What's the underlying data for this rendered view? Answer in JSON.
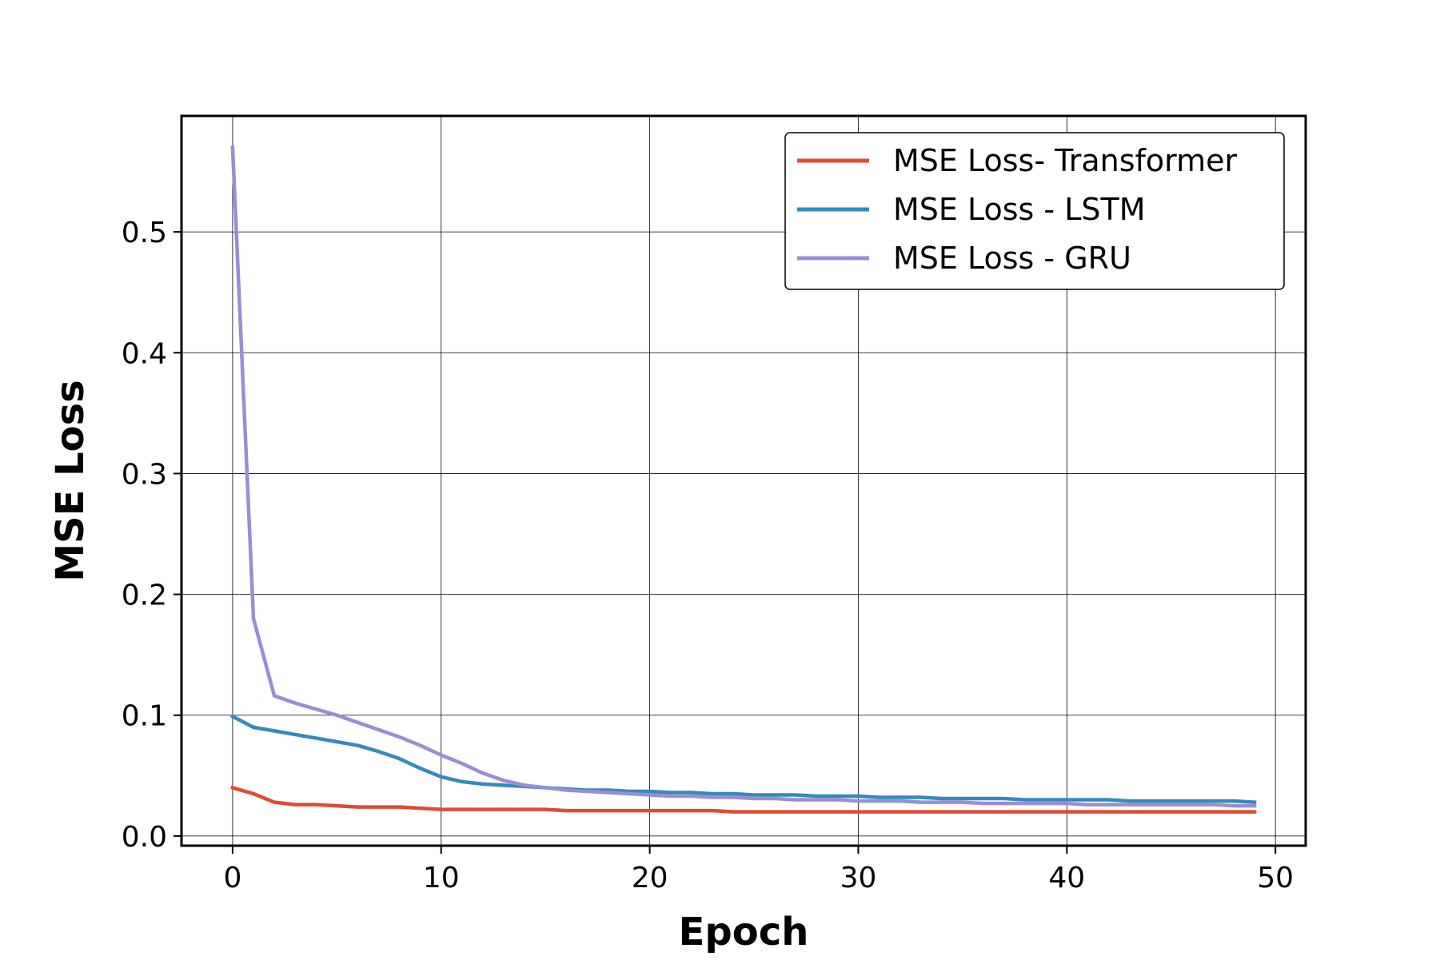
{
  "chart_data": {
    "type": "line",
    "title": "",
    "xlabel": "Epoch",
    "ylabel": "MSE Loss",
    "xlim": [
      -2.45,
      51.45
    ],
    "ylim": [
      -0.008,
      0.596
    ],
    "xticks": [
      0,
      10,
      20,
      30,
      40,
      50
    ],
    "yticks": [
      0.0,
      0.1,
      0.2,
      0.3,
      0.4,
      0.5
    ],
    "grid": true,
    "legend_position": "top-right",
    "x": [
      0,
      1,
      2,
      3,
      4,
      5,
      6,
      7,
      8,
      9,
      10,
      11,
      12,
      13,
      14,
      15,
      16,
      17,
      18,
      19,
      20,
      21,
      22,
      23,
      24,
      25,
      26,
      27,
      28,
      29,
      30,
      31,
      32,
      33,
      34,
      35,
      36,
      37,
      38,
      39,
      40,
      41,
      42,
      43,
      44,
      45,
      46,
      47,
      48,
      49
    ],
    "series": [
      {
        "name": "MSE Loss- Transformer",
        "color": "#e24a33",
        "values": [
          0.04,
          0.035,
          0.028,
          0.026,
          0.026,
          0.025,
          0.024,
          0.024,
          0.024,
          0.023,
          0.022,
          0.022,
          0.022,
          0.022,
          0.022,
          0.022,
          0.021,
          0.021,
          0.021,
          0.021,
          0.021,
          0.021,
          0.021,
          0.021,
          0.02,
          0.02,
          0.02,
          0.02,
          0.02,
          0.02,
          0.02,
          0.02,
          0.02,
          0.02,
          0.02,
          0.02,
          0.02,
          0.02,
          0.02,
          0.02,
          0.02,
          0.02,
          0.02,
          0.02,
          0.02,
          0.02,
          0.02,
          0.02,
          0.02,
          0.02
        ]
      },
      {
        "name": "MSE Loss - LSTM",
        "color": "#348abd",
        "values": [
          0.099,
          0.09,
          0.087,
          0.084,
          0.081,
          0.078,
          0.075,
          0.07,
          0.064,
          0.056,
          0.049,
          0.045,
          0.043,
          0.042,
          0.041,
          0.04,
          0.039,
          0.038,
          0.038,
          0.037,
          0.037,
          0.036,
          0.036,
          0.035,
          0.035,
          0.034,
          0.034,
          0.034,
          0.033,
          0.033,
          0.033,
          0.032,
          0.032,
          0.032,
          0.031,
          0.031,
          0.031,
          0.031,
          0.03,
          0.03,
          0.03,
          0.03,
          0.03,
          0.029,
          0.029,
          0.029,
          0.029,
          0.029,
          0.029,
          0.028
        ]
      },
      {
        "name": "MSE Loss - GRU",
        "color": "#988ed5",
        "values": [
          0.57,
          0.18,
          0.116,
          0.11,
          0.105,
          0.1,
          0.094,
          0.088,
          0.082,
          0.075,
          0.067,
          0.06,
          0.052,
          0.046,
          0.042,
          0.04,
          0.038,
          0.037,
          0.036,
          0.035,
          0.034,
          0.033,
          0.033,
          0.032,
          0.032,
          0.031,
          0.031,
          0.03,
          0.03,
          0.03,
          0.029,
          0.029,
          0.029,
          0.028,
          0.028,
          0.028,
          0.027,
          0.027,
          0.027,
          0.027,
          0.027,
          0.026,
          0.026,
          0.026,
          0.026,
          0.026,
          0.026,
          0.026,
          0.025,
          0.025
        ]
      }
    ]
  }
}
